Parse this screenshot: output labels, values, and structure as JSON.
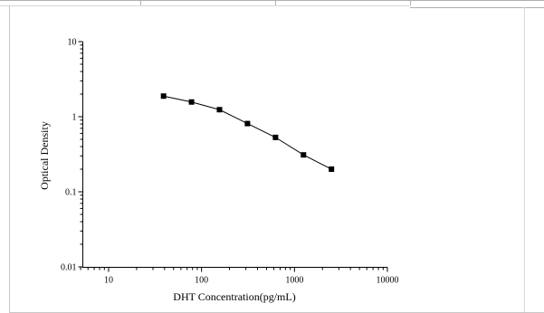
{
  "chart_data": {
    "type": "line",
    "title": "",
    "xlabel": "DHT Concentration(pg/mL)",
    "ylabel": "Optical Density",
    "x_scale": "log",
    "y_scale": "log",
    "xlim": [
      5,
      10000
    ],
    "ylim": [
      0.01,
      10
    ],
    "x_ticks": [
      10,
      100,
      1000,
      10000
    ],
    "x_tick_labels": [
      "10",
      "100",
      "1000",
      "10000"
    ],
    "y_ticks": [
      0.01,
      0.1,
      1,
      10
    ],
    "y_tick_labels": [
      "0.01",
      "0.1",
      "1",
      "10"
    ],
    "grid": false,
    "legend": "none",
    "marker": "square",
    "series": [
      {
        "x": [
          39,
          78,
          156,
          312,
          625,
          1250,
          2500
        ],
        "y": [
          1.88,
          1.57,
          1.24,
          0.81,
          0.53,
          0.31,
          0.2
        ]
      }
    ]
  },
  "colors": {
    "line": "#000000",
    "marker": "#000000",
    "frame_lines": "#b0b0b0"
  }
}
